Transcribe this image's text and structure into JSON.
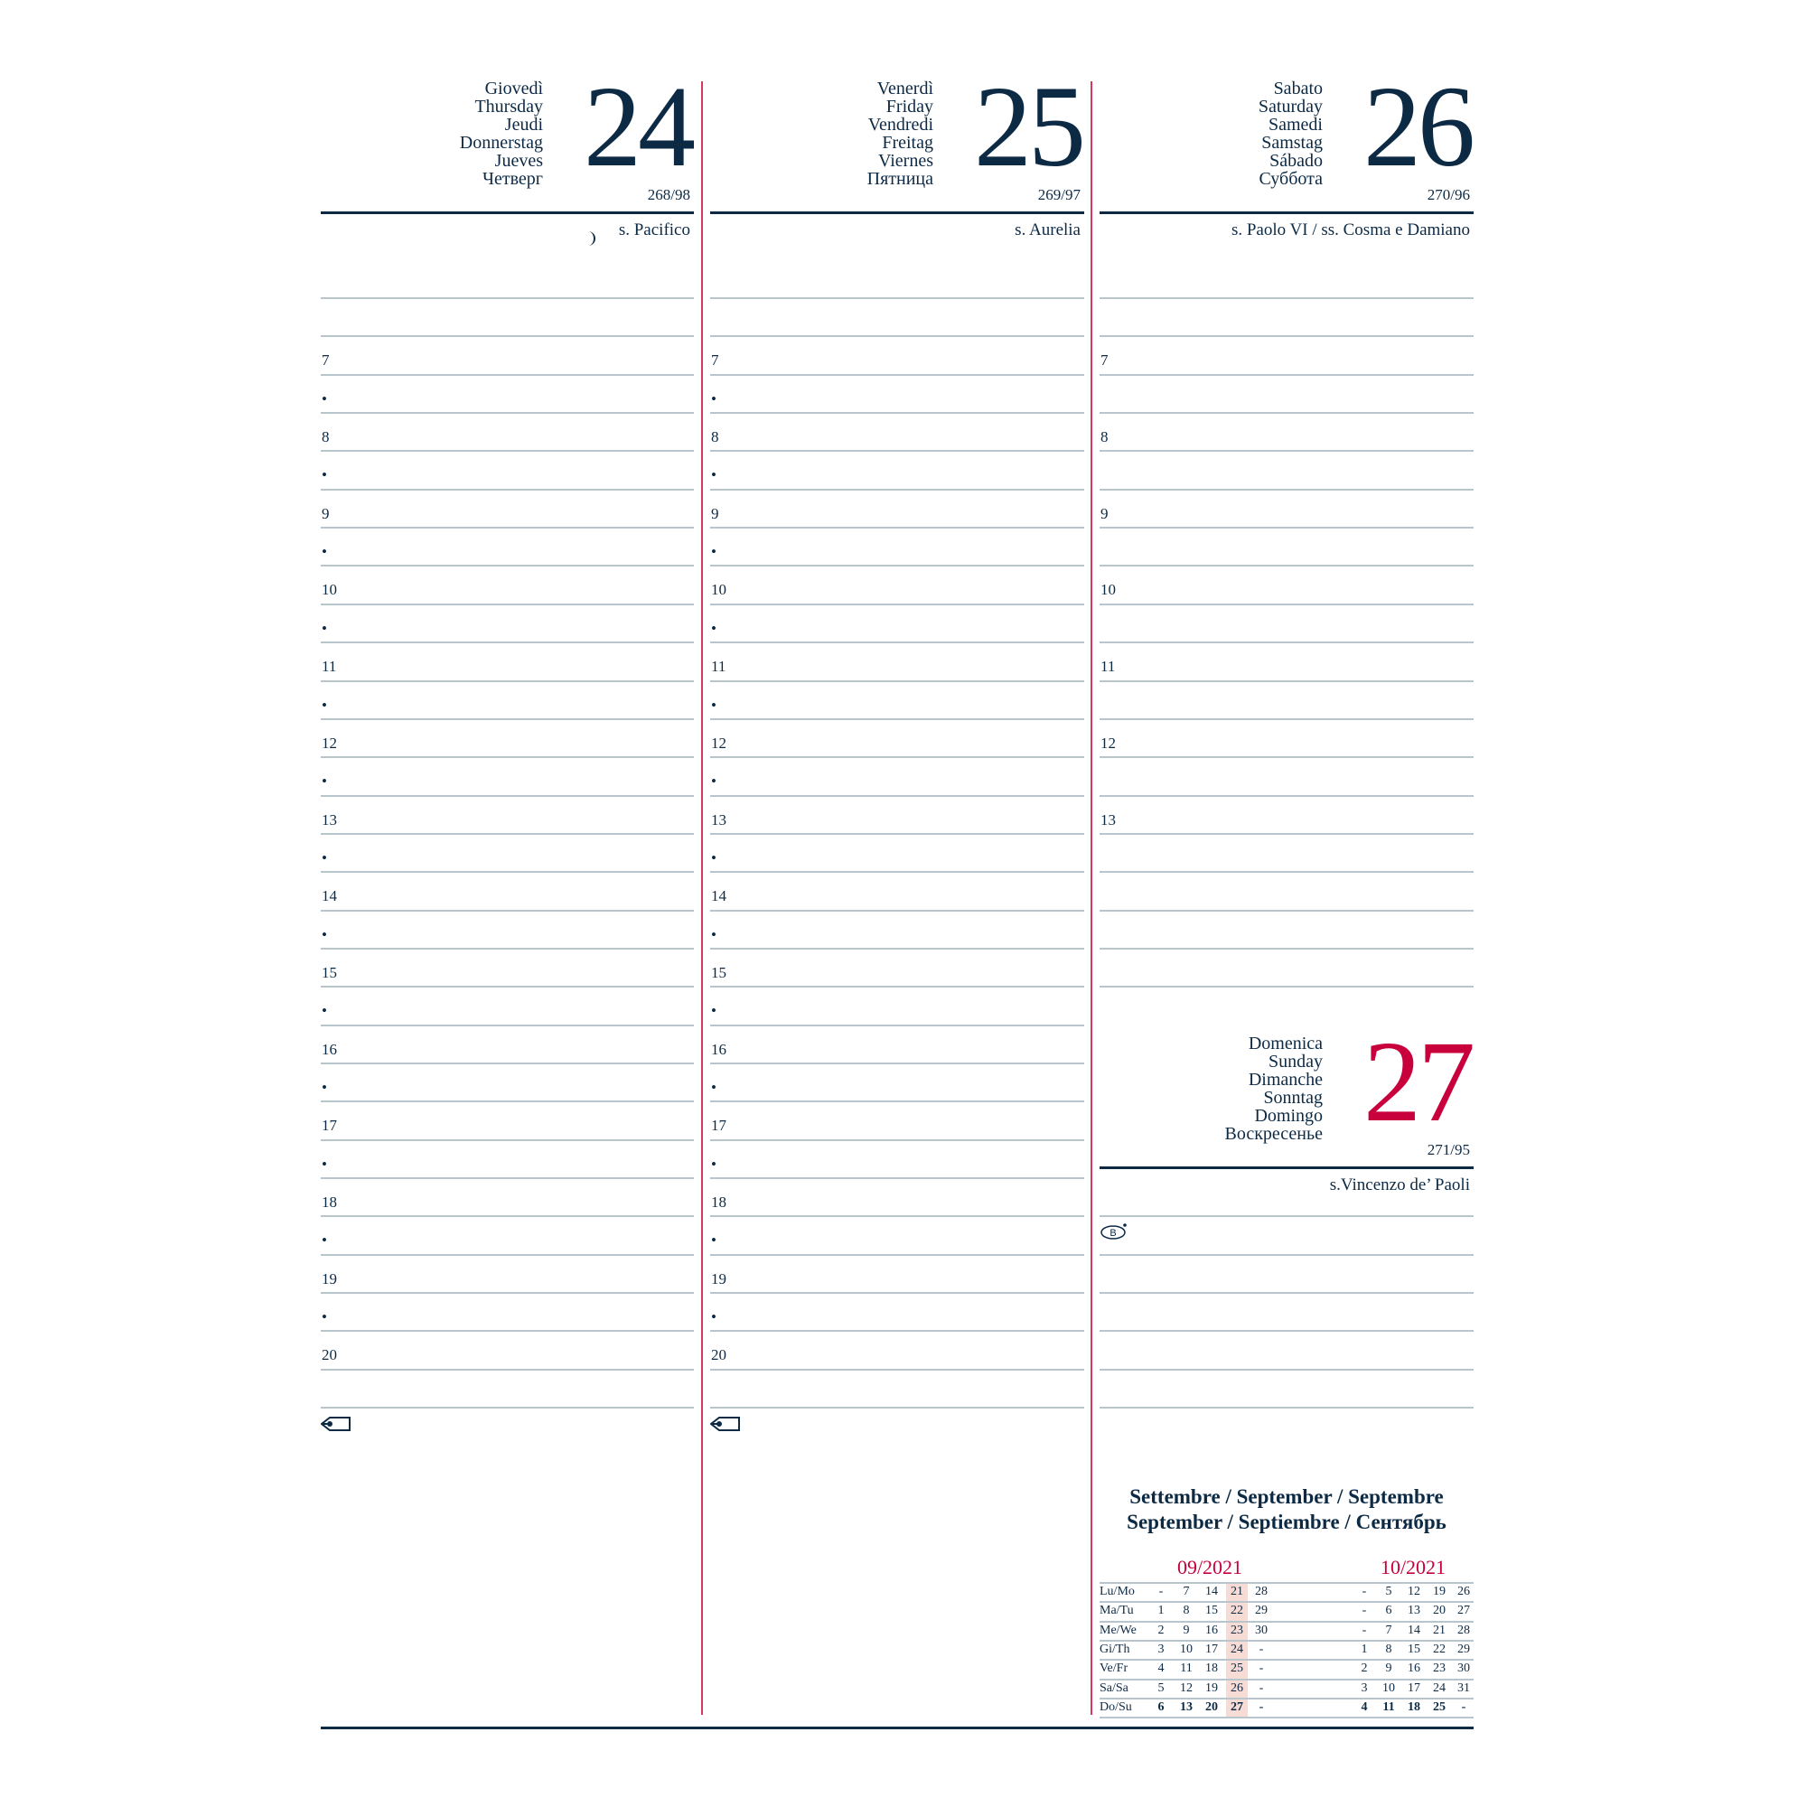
{
  "colors": {
    "ink": "#0d2a45",
    "sunday_red": "#c8003c",
    "divider_red": "#d23a62",
    "ruling": "#b9c5cd",
    "highlight": "#f7dcd6"
  },
  "days": [
    {
      "names": [
        "Giovedì",
        "Thursday",
        "Jeudi",
        "Donnerstag",
        "Jueves",
        "Четверг"
      ],
      "number": "24",
      "day_of_year": "268/98",
      "saint": "s. Pacifico",
      "moon_icon": "waning-moon-icon",
      "slots": [
        "",
        "7",
        "•",
        "8",
        "•",
        "9",
        "•",
        "10",
        "•",
        "11",
        "•",
        "12",
        "•",
        "13",
        "•",
        "14",
        "•",
        "15",
        "•",
        "16",
        "•",
        "17",
        "•",
        "18",
        "•",
        "19",
        "•",
        "20",
        ""
      ],
      "footer_icon": "tag-icon"
    },
    {
      "names": [
        "Venerdì",
        "Friday",
        "Vendredi",
        "Freitag",
        "Viernes",
        "Пятница"
      ],
      "number": "25",
      "day_of_year": "269/97",
      "saint": "s. Aurelia",
      "slots": [
        "",
        "7",
        "•",
        "8",
        "•",
        "9",
        "•",
        "10",
        "•",
        "11",
        "•",
        "12",
        "•",
        "13",
        "•",
        "14",
        "•",
        "15",
        "•",
        "16",
        "•",
        "17",
        "•",
        "18",
        "•",
        "19",
        "•",
        "20",
        ""
      ],
      "footer_icon": "tag-icon"
    },
    {
      "names": [
        "Sabato",
        "Saturday",
        "Samedi",
        "Samstag",
        "Sábado",
        "Суббота"
      ],
      "number": "26",
      "day_of_year": "270/96",
      "saint": "s. Paolo VI / ss. Cosma e Damiano",
      "slots": [
        "",
        "7",
        "",
        "8",
        "",
        "9",
        "",
        "10",
        "",
        "11",
        "",
        "12",
        "",
        "13",
        "",
        "",
        "",
        "",
        ""
      ]
    }
  ],
  "sunday": {
    "names": [
      "Domenica",
      "Sunday",
      "Dimanche",
      "Sonntag",
      "Domingo",
      "Воскресенье"
    ],
    "number": "27",
    "day_of_year": "271/95",
    "saint": "s.Vincenzo de’ Paoli",
    "badge_icon": "b-badge-icon",
    "badge_text": "B"
  },
  "mini_calendar": {
    "title_line1": "Settembre / September / Septembre",
    "title_line2": "September / Septiembre / Сентябрь",
    "weekdays": [
      "Lu/Mo",
      "Ma/Tu",
      "Me/We",
      "Gi/Th",
      "Ve/Fr",
      "Sa/Sa",
      "Do/Su"
    ],
    "months": [
      {
        "label": "09/2021",
        "highlight_column": 3,
        "weeks": [
          [
            "-",
            "7",
            "14",
            "21",
            "28"
          ],
          [
            "1",
            "8",
            "15",
            "22",
            "29"
          ],
          [
            "2",
            "9",
            "16",
            "23",
            "30"
          ],
          [
            "3",
            "10",
            "17",
            "24",
            "-"
          ],
          [
            "4",
            "11",
            "18",
            "25",
            "-"
          ],
          [
            "5",
            "12",
            "19",
            "26",
            "-"
          ],
          [
            "6",
            "13",
            "20",
            "27",
            "-"
          ]
        ]
      },
      {
        "label": "10/2021",
        "weeks": [
          [
            "-",
            "5",
            "12",
            "19",
            "26"
          ],
          [
            "-",
            "6",
            "13",
            "20",
            "27"
          ],
          [
            "-",
            "7",
            "14",
            "21",
            "28"
          ],
          [
            "1",
            "8",
            "15",
            "22",
            "29"
          ],
          [
            "2",
            "9",
            "16",
            "23",
            "30"
          ],
          [
            "3",
            "10",
            "17",
            "24",
            "31"
          ],
          [
            "4",
            "11",
            "18",
            "25",
            "-"
          ]
        ]
      }
    ]
  }
}
